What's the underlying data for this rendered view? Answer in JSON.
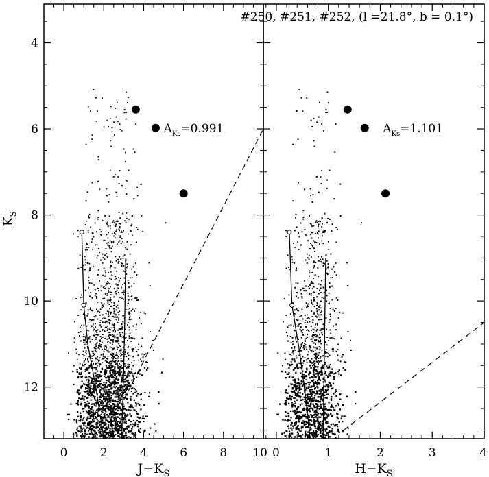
{
  "chart_data": [
    {
      "type": "scatter",
      "panel": "left",
      "xlabel_main": "J−K",
      "xlabel_sub": "S",
      "ylabel_main": "K",
      "ylabel_sub": "S",
      "xlim": [
        -1,
        10
      ],
      "ylim": [
        3.1,
        13.2
      ],
      "y_inverted": true,
      "xticks": [
        0,
        2,
        4,
        6,
        8,
        10
      ],
      "yticks": [
        4,
        6,
        8,
        10,
        12
      ],
      "annotation": {
        "prefix": "A",
        "sub": "Ks",
        "value": "=0.991",
        "x": 5.0,
        "y": 5.98
      },
      "big_stars": [
        {
          "x": 3.6,
          "y": 5.55
        },
        {
          "x": 4.6,
          "y": 5.98
        },
        {
          "x": 6.0,
          "y": 7.5
        }
      ],
      "giant_branch_track": [
        [
          2.9,
          13.2
        ],
        [
          3.0,
          11.6
        ],
        [
          3.05,
          10.5
        ],
        [
          3.1,
          9.0
        ]
      ],
      "dwarf_track": [
        [
          0.9,
          8.4
        ],
        [
          1.0,
          10.1
        ],
        [
          1.2,
          11.0
        ],
        [
          1.6,
          12.0
        ],
        [
          1.8,
          12.6
        ],
        [
          2.0,
          13.2
        ]
      ],
      "dwarf_track_markers": [
        [
          0.9,
          8.4
        ],
        [
          1.0,
          10.1
        ],
        [
          1.8,
          12.6
        ]
      ],
      "reddening_line": [
        [
          3.0,
          12.3
        ],
        [
          10.0,
          6.0
        ]
      ]
    },
    {
      "type": "scatter",
      "panel": "right",
      "xlabel_main": "H−K",
      "xlabel_sub": "S",
      "xlim": [
        -0.25,
        4
      ],
      "ylim": [
        3.1,
        13.2
      ],
      "y_inverted": true,
      "xticks": [
        0,
        1,
        2,
        3,
        4
      ],
      "annotation": {
        "prefix": "A",
        "sub": "Ks",
        "value": "=1.101",
        "x": 2.05,
        "y": 5.98
      },
      "big_stars": [
        {
          "x": 1.37,
          "y": 5.55
        },
        {
          "x": 1.7,
          "y": 5.98
        },
        {
          "x": 2.1,
          "y": 7.5
        }
      ],
      "giant_branch_track": [
        [
          0.9,
          13.2
        ],
        [
          0.92,
          11.6
        ],
        [
          0.95,
          9.0
        ]
      ],
      "dwarf_track": [
        [
          0.25,
          8.4
        ],
        [
          0.3,
          10.1
        ],
        [
          0.45,
          11.2
        ],
        [
          0.6,
          12.6
        ],
        [
          0.65,
          13.2
        ]
      ],
      "dwarf_track_markers": [
        [
          0.25,
          8.4
        ],
        [
          0.3,
          10.1
        ]
      ],
      "reddening_line": [
        [
          1.3,
          13.0
        ],
        [
          4.0,
          10.5
        ]
      ]
    }
  ],
  "field_title": "#250, #251, #252, (l =21.8°, b = 0.1°)",
  "colors": {
    "ink": "#000000",
    "background": "#ffffff"
  }
}
